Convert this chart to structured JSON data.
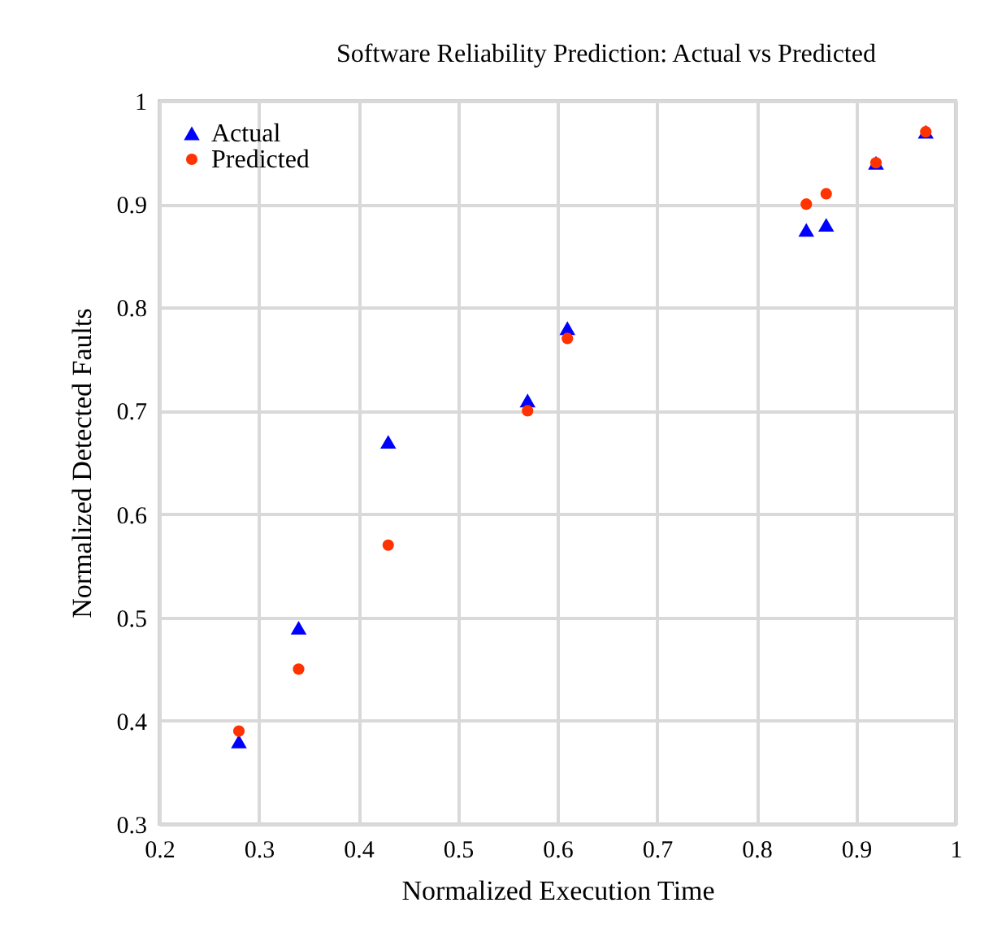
{
  "chart_data": {
    "type": "scatter",
    "title": "Software Reliability Prediction: Actual vs Predicted",
    "xlabel": "Normalized Execution Time",
    "ylabel": "Normalized Detected Faults",
    "x": [
      0.28,
      0.34,
      0.43,
      0.57,
      0.61,
      0.85,
      0.87,
      0.92,
      0.97
    ],
    "series": [
      {
        "name": "Actual",
        "color": "#0000ff",
        "marker": "triangle",
        "values": [
          0.38,
          0.49,
          0.67,
          0.71,
          0.78,
          0.875,
          0.88,
          0.94,
          0.97
        ]
      },
      {
        "name": "Predicted",
        "color": "#ff3300",
        "marker": "circle",
        "values": [
          0.39,
          0.45,
          0.57,
          0.7,
          0.77,
          0.9,
          0.91,
          0.94,
          0.97
        ]
      }
    ],
    "xlim": [
      0.2,
      1
    ],
    "xticks": [
      0.2,
      0.3,
      0.4,
      0.5,
      0.6,
      0.7,
      0.8,
      0.9,
      1
    ],
    "ylim": [
      0.3,
      1
    ],
    "yticks": [
      0.3,
      0.4,
      0.5,
      0.6,
      0.7,
      0.8,
      0.9,
      1
    ],
    "grid": true,
    "legend": "top left"
  }
}
